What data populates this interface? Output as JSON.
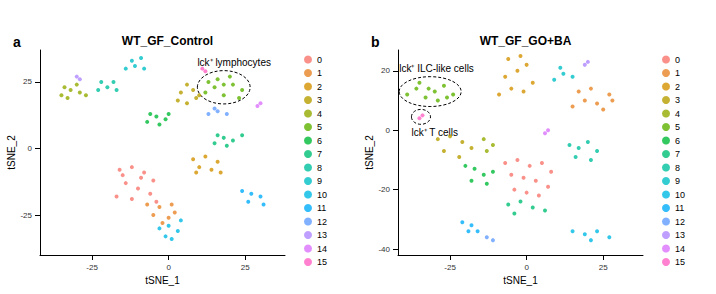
{
  "chart_data": [
    {
      "type": "scatter",
      "panel": "a",
      "title": "WT_GF_Control",
      "x_label": "tSNE_1",
      "y_label": "tSNE_2",
      "xlim": [
        -42,
        38
      ],
      "ylim": [
        -40,
        37
      ],
      "xticks": [
        -25,
        0,
        25
      ],
      "yticks": [
        -25,
        0,
        25
      ],
      "grid": false,
      "legend": "right",
      "annotations": [
        {
          "text": "lck⁺ lymphocytes",
          "cluster": "5"
        }
      ],
      "series": [
        {
          "name": "0",
          "color": "#F8766D",
          "values": [
            [
              -16,
              -8
            ],
            [
              -12,
              -7
            ],
            [
              -8,
              -9
            ],
            [
              -5,
              -12
            ],
            [
              -14,
              -13
            ],
            [
              -10,
              -15
            ],
            [
              -6,
              -17
            ],
            [
              -17,
              -18
            ],
            [
              -12,
              -19
            ],
            [
              -4,
              -20
            ],
            [
              -9,
              -11
            ],
            [
              -15,
              -10
            ]
          ]
        },
        {
          "name": "1",
          "color": "#E88526",
          "values": [
            [
              -7,
              -21
            ],
            [
              -3,
              -22
            ],
            [
              1,
              -21
            ],
            [
              -5,
              -25
            ],
            [
              0,
              -26
            ],
            [
              2,
              -24
            ],
            [
              -2,
              -28
            ]
          ]
        },
        {
          "name": "2",
          "color": "#D39200",
          "values": [
            [
              8,
              -4
            ],
            [
              12,
              -3
            ],
            [
              16,
              -5
            ],
            [
              10,
              -7
            ],
            [
              14,
              -8
            ],
            [
              17,
              -9
            ],
            [
              9,
              -9
            ]
          ]
        },
        {
          "name": "3",
          "color": "#B79F00",
          "values": [
            [
              3,
              18
            ],
            [
              6,
              17
            ],
            [
              9,
              19
            ],
            [
              4,
              21
            ],
            [
              8,
              22
            ],
            [
              10,
              20
            ],
            [
              6,
              24
            ]
          ]
        },
        {
          "name": "4",
          "color": "#93AA00",
          "values": [
            [
              -35,
              20
            ],
            [
              -32,
              22
            ],
            [
              -29,
              21
            ],
            [
              -34,
              23
            ],
            [
              -30,
              24
            ],
            [
              -27,
              20
            ],
            [
              -33,
              19
            ]
          ]
        },
        {
          "name": "5",
          "color": "#5EB300",
          "values": [
            [
              12,
              21
            ],
            [
              15,
              23
            ],
            [
              18,
              20
            ],
            [
              21,
              24
            ],
            [
              24,
              22
            ],
            [
              16,
              26
            ],
            [
              20,
              27
            ],
            [
              13,
              25
            ],
            [
              23,
              19
            ],
            [
              18,
              24
            ]
          ]
        },
        {
          "name": "6",
          "color": "#00BA38",
          "values": [
            [
              -7,
              10
            ],
            [
              -4,
              12
            ],
            [
              -1,
              11
            ],
            [
              -6,
              13
            ],
            [
              0,
              13
            ],
            [
              -3,
              9
            ]
          ]
        },
        {
          "name": "7",
          "color": "#00BF74",
          "values": [
            [
              15,
              2
            ],
            [
              18,
              4
            ],
            [
              21,
              3
            ],
            [
              24,
              5
            ],
            [
              19,
              1
            ],
            [
              16,
              5
            ]
          ]
        },
        {
          "name": "8",
          "color": "#00C19F",
          "values": [
            [
              -23,
              22
            ],
            [
              -20,
              23
            ],
            [
              -17,
              22
            ],
            [
              -22,
              25
            ],
            [
              -18,
              25
            ]
          ]
        },
        {
          "name": "9",
          "color": "#00BFC4",
          "values": [
            [
              -14,
              30
            ],
            [
              -11,
              31
            ],
            [
              -8,
              30
            ],
            [
              -12,
              33
            ],
            [
              -9,
              34
            ]
          ]
        },
        {
          "name": "10",
          "color": "#00B9E3",
          "values": [
            [
              -3,
              -30
            ],
            [
              0,
              -29
            ],
            [
              3,
              -31
            ],
            [
              -1,
              -33
            ],
            [
              4,
              -27
            ],
            [
              1,
              -34
            ]
          ]
        },
        {
          "name": "11",
          "color": "#00ADFA",
          "values": [
            [
              24,
              -16
            ],
            [
              27,
              -17
            ],
            [
              30,
              -18
            ],
            [
              26,
              -20
            ],
            [
              31,
              -21
            ]
          ]
        },
        {
          "name": "12",
          "color": "#619CFF",
          "values": [
            [
              13,
              13
            ],
            [
              16,
              14
            ],
            [
              19,
              13
            ],
            [
              15,
              15
            ]
          ]
        },
        {
          "name": "13",
          "color": "#AE87FF",
          "values": [
            [
              -30,
              27
            ],
            [
              -29,
              26
            ]
          ]
        },
        {
          "name": "14",
          "color": "#DB72FB",
          "values": [
            [
              29,
              16
            ],
            [
              30,
              17
            ]
          ]
        },
        {
          "name": "15",
          "color": "#FF61C3",
          "values": [
            [
              11,
              30
            ],
            [
              12,
              29
            ]
          ]
        }
      ]
    },
    {
      "type": "scatter",
      "panel": "b",
      "title": "WT_GF_GO+BA",
      "x_label": "tSNE_1",
      "y_label": "tSNE_2",
      "xlim": [
        -42,
        38
      ],
      "ylim": [
        -42,
        27
      ],
      "xticks": [
        -25,
        0,
        25
      ],
      "yticks": [
        -40,
        -20,
        0,
        20
      ],
      "grid": false,
      "legend": "right",
      "annotations": [
        {
          "text": "lck⁺ ILC-like cells",
          "cluster": "5"
        },
        {
          "text": "lck⁺ T cells",
          "cluster": "15"
        }
      ],
      "series": [
        {
          "name": "0",
          "color": "#F8766D",
          "values": [
            [
              -7,
              -11
            ],
            [
              -3,
              -10
            ],
            [
              1,
              -12
            ],
            [
              5,
              -11
            ],
            [
              8,
              -14
            ],
            [
              -5,
              -15
            ],
            [
              -1,
              -16
            ],
            [
              3,
              -17
            ],
            [
              7,
              -19
            ],
            [
              -4,
              -20
            ],
            [
              0,
              -21
            ],
            [
              4,
              -22
            ]
          ]
        },
        {
          "name": "1",
          "color": "#E88526",
          "values": [
            [
              15,
              8
            ],
            [
              19,
              10
            ],
            [
              23,
              9
            ],
            [
              27,
              12
            ],
            [
              17,
              13
            ],
            [
              21,
              14
            ],
            [
              25,
              7
            ],
            [
              28,
              10
            ]
          ]
        },
        {
          "name": "2",
          "color": "#D39200",
          "values": [
            [
              -9,
              12
            ],
            [
              -5,
              14
            ],
            [
              -1,
              13
            ],
            [
              2,
              16
            ],
            [
              -7,
              18
            ],
            [
              -3,
              20
            ],
            [
              0,
              22
            ],
            [
              -6,
              24
            ],
            [
              -2,
              25
            ]
          ]
        },
        {
          "name": "3",
          "color": "#B79F00",
          "values": [
            [
              -29,
              -3
            ],
            [
              -25,
              -2
            ],
            [
              -21,
              -4
            ],
            [
              -18,
              -6
            ],
            [
              -27,
              -7
            ],
            [
              -22,
              -9
            ]
          ]
        },
        {
          "name": "4",
          "color": "#93AA00",
          "values": [
            [
              -14,
              -3
            ],
            [
              -11,
              -5
            ],
            [
              -13,
              -7
            ]
          ]
        },
        {
          "name": "5",
          "color": "#5EB300",
          "values": [
            [
              -39,
              12
            ],
            [
              -36,
              14
            ],
            [
              -33,
              11
            ],
            [
              -30,
              13
            ],
            [
              -27,
              15
            ],
            [
              -24,
              12
            ],
            [
              -35,
              16
            ],
            [
              -29,
              10
            ],
            [
              -32,
              14
            ],
            [
              -26,
              11
            ]
          ]
        },
        {
          "name": "6",
          "color": "#00BA38",
          "values": [
            [
              -20,
              -12
            ],
            [
              -17,
              -13
            ],
            [
              -14,
              -15
            ],
            [
              -11,
              -14
            ],
            [
              -18,
              -17
            ],
            [
              -13,
              -18
            ]
          ]
        },
        {
          "name": "7",
          "color": "#00BF74",
          "values": [
            [
              -6,
              -25
            ],
            [
              -2,
              -24
            ],
            [
              2,
              -26
            ],
            [
              6,
              -27
            ],
            [
              -4,
              -28
            ]
          ]
        },
        {
          "name": "8",
          "color": "#00C19F",
          "values": [
            [
              14,
              -5
            ],
            [
              17,
              -6
            ],
            [
              20,
              -4
            ],
            [
              23,
              -7
            ],
            [
              16,
              -9
            ],
            [
              21,
              -10
            ]
          ]
        },
        {
          "name": "9",
          "color": "#00BFC4",
          "values": [
            [
              9,
              17
            ],
            [
              12,
              19
            ],
            [
              15,
              18
            ],
            [
              11,
              21
            ]
          ]
        },
        {
          "name": "10",
          "color": "#00B9E3",
          "values": [
            [
              15,
              -34
            ],
            [
              19,
              -35
            ],
            [
              23,
              -34
            ],
            [
              27,
              -36
            ],
            [
              21,
              -37
            ]
          ]
        },
        {
          "name": "11",
          "color": "#00ADFA",
          "values": [
            [
              -21,
              -31
            ],
            [
              -18,
              -32
            ],
            [
              -16,
              -34
            ],
            [
              -19,
              -34
            ]
          ]
        },
        {
          "name": "12",
          "color": "#619CFF",
          "values": [
            [
              -13,
              -36
            ],
            [
              -11,
              -37
            ]
          ]
        },
        {
          "name": "13",
          "color": "#AE87FF",
          "values": [
            [
              19,
              22
            ],
            [
              20,
              23
            ]
          ]
        },
        {
          "name": "14",
          "color": "#DB72FB",
          "values": [
            [
              6,
              -1
            ],
            [
              7,
              0
            ]
          ]
        },
        {
          "name": "15",
          "color": "#FF61C3",
          "values": [
            [
              -35,
              4
            ],
            [
              -34,
              5
            ]
          ]
        }
      ]
    }
  ]
}
